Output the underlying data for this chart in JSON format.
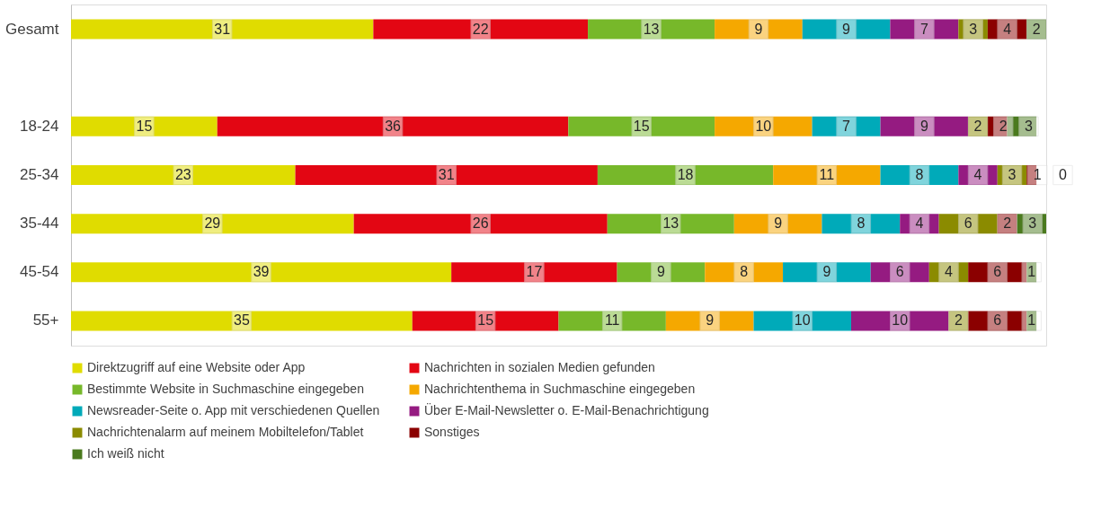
{
  "chart_data": {
    "type": "bar",
    "orientation": "horizontal",
    "stacked": true,
    "data_labels": true,
    "legend": "bottom",
    "categories": [
      "Gesamt",
      null,
      "18-24",
      "25-34",
      "35-44",
      "45-54",
      "55+"
    ],
    "xlim": [
      0,
      100
    ],
    "series": [
      {
        "name": "Direktzugriff auf eine Website oder App",
        "color": "#e0dc00",
        "values": [
          31,
          null,
          15,
          23,
          29,
          39,
          35
        ]
      },
      {
        "name": "Nachrichten in sozialen Medien gefunden",
        "color": "#e30613",
        "values": [
          22,
          null,
          36,
          31,
          26,
          17,
          15
        ]
      },
      {
        "name": "Bestimmte Website in Suchmaschine eingegeben",
        "color": "#77b82a",
        "values": [
          13,
          null,
          15,
          18,
          13,
          9,
          11
        ]
      },
      {
        "name": "Nachrichtenthema in Suchmaschine eingegeben",
        "color": "#f5a800",
        "values": [
          9,
          null,
          10,
          11,
          9,
          8,
          9
        ]
      },
      {
        "name": "Newsreader-Seite o. App mit verschiedenen Quellen",
        "color": "#00aab9",
        "values": [
          9,
          null,
          7,
          8,
          8,
          9,
          10
        ]
      },
      {
        "name": "Über E-Mail-Newsletter o. E-Mail-Benachrichtigung",
        "color": "#951b81",
        "values": [
          7,
          null,
          9,
          4,
          4,
          6,
          10
        ]
      },
      {
        "name": "Nachrichtenalarm auf meinem Mobiltelefon/Tablet",
        "color": "#8b8b00",
        "values": [
          3,
          null,
          2,
          3,
          6,
          4,
          2
        ]
      },
      {
        "name": "Sonstiges",
        "color": "#8b0000",
        "values": [
          4,
          null,
          2,
          1,
          2,
          6,
          6
        ]
      },
      {
        "name": "Ich weiß nicht",
        "color": "#4a7a1e",
        "values": [
          2,
          null,
          3,
          0,
          3,
          1,
          1
        ]
      }
    ]
  }
}
